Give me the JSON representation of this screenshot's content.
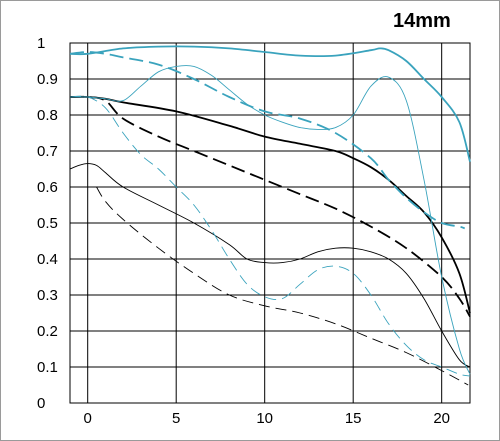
{
  "chart_data": {
    "type": "line",
    "title": "14mm",
    "xlabel": "",
    "ylabel": "",
    "xlim": [
      -1,
      21.6
    ],
    "ylim": [
      0,
      1
    ],
    "xticks": [
      "0",
      "5",
      "10",
      "15",
      "20"
    ],
    "yticks": [
      "0",
      "0.1",
      "0.2",
      "0.3",
      "0.4",
      "0.5",
      "0.6",
      "0.7",
      "0.8",
      "0.9",
      "1"
    ],
    "grid": true,
    "legend": "none",
    "colors": {
      "black": "#000000",
      "cyan": "#3aa3bd",
      "grid": "#000000"
    },
    "series": [
      {
        "color": "black",
        "style": "solid",
        "weight": "thick",
        "x": [
          -1,
          0,
          1,
          2,
          5,
          8,
          10,
          12,
          14,
          15,
          16,
          17,
          18,
          19,
          20,
          21,
          21.6
        ],
        "y": [
          0.85,
          0.85,
          0.845,
          0.835,
          0.81,
          0.77,
          0.74,
          0.72,
          0.7,
          0.68,
          0.655,
          0.62,
          0.575,
          0.53,
          0.46,
          0.36,
          0.25
        ]
      },
      {
        "color": "black",
        "style": "dashed",
        "weight": "thick",
        "x": [
          -1,
          0,
          1,
          2,
          4,
          6,
          8,
          10,
          12,
          14,
          16,
          18,
          20,
          21,
          21.6
        ],
        "y": [
          0.85,
          0.85,
          0.84,
          0.79,
          0.74,
          0.7,
          0.66,
          0.62,
          0.58,
          0.54,
          0.49,
          0.43,
          0.35,
          0.29,
          0.24
        ]
      },
      {
        "color": "black",
        "style": "solid",
        "weight": "thin",
        "x": [
          -1,
          -0.5,
          0,
          0.5,
          1,
          2,
          4,
          6,
          8,
          9,
          10,
          11,
          12,
          13,
          14,
          15,
          16,
          17,
          18,
          19,
          20,
          21,
          21.6
        ],
        "y": [
          0.65,
          0.66,
          0.665,
          0.66,
          0.64,
          0.6,
          0.55,
          0.5,
          0.44,
          0.4,
          0.39,
          0.39,
          0.4,
          0.42,
          0.43,
          0.43,
          0.42,
          0.4,
          0.36,
          0.29,
          0.2,
          0.12,
          0.1
        ]
      },
      {
        "color": "black",
        "style": "dashed",
        "weight": "thin",
        "x": [
          0.5,
          1,
          2,
          4,
          6,
          8,
          10,
          12,
          14,
          16,
          18,
          20,
          21.5
        ],
        "y": [
          0.6,
          0.56,
          0.51,
          0.43,
          0.36,
          0.3,
          0.27,
          0.25,
          0.22,
          0.18,
          0.14,
          0.09,
          0.05
        ]
      },
      {
        "color": "cyan",
        "style": "solid",
        "weight": "thick",
        "x": [
          -1,
          0,
          2,
          4,
          6,
          8,
          10,
          12,
          14,
          16,
          16.5,
          17,
          18,
          19,
          20,
          21,
          21.6
        ],
        "y": [
          0.97,
          0.97,
          0.985,
          0.99,
          0.99,
          0.985,
          0.975,
          0.965,
          0.965,
          0.98,
          0.985,
          0.98,
          0.95,
          0.9,
          0.85,
          0.78,
          0.67
        ]
      },
      {
        "color": "cyan",
        "style": "dashed",
        "weight": "thick",
        "x": [
          -1,
          0,
          1,
          2,
          4,
          6,
          8,
          10,
          12,
          14,
          16,
          17,
          18,
          19,
          20,
          21,
          21.3
        ],
        "y": [
          0.97,
          0.975,
          0.97,
          0.96,
          0.94,
          0.9,
          0.85,
          0.81,
          0.79,
          0.75,
          0.68,
          0.62,
          0.57,
          0.53,
          0.5,
          0.49,
          0.485
        ]
      },
      {
        "color": "cyan",
        "style": "solid",
        "weight": "thin",
        "x": [
          -1,
          0,
          1,
          2,
          3,
          4,
          5,
          6,
          7,
          8,
          9,
          10,
          11,
          12,
          13,
          14,
          15,
          16,
          17,
          18,
          19,
          20,
          21,
          21.6
        ],
        "y": [
          0.85,
          0.85,
          0.845,
          0.84,
          0.88,
          0.92,
          0.935,
          0.935,
          0.91,
          0.87,
          0.83,
          0.8,
          0.78,
          0.765,
          0.76,
          0.765,
          0.8,
          0.88,
          0.905,
          0.84,
          0.62,
          0.35,
          0.15,
          0.08
        ]
      },
      {
        "color": "cyan",
        "style": "dashed",
        "weight": "thin",
        "x": [
          -1,
          0,
          1,
          2,
          3,
          4,
          5,
          6,
          7,
          8,
          9,
          10,
          11,
          12,
          13,
          14,
          15,
          16,
          17,
          18,
          19,
          20,
          21,
          21.6
        ],
        "y": [
          0.85,
          0.85,
          0.82,
          0.75,
          0.69,
          0.65,
          0.6,
          0.55,
          0.48,
          0.4,
          0.33,
          0.295,
          0.29,
          0.33,
          0.37,
          0.38,
          0.36,
          0.3,
          0.22,
          0.16,
          0.12,
          0.1,
          0.08,
          0.075
        ]
      }
    ]
  }
}
